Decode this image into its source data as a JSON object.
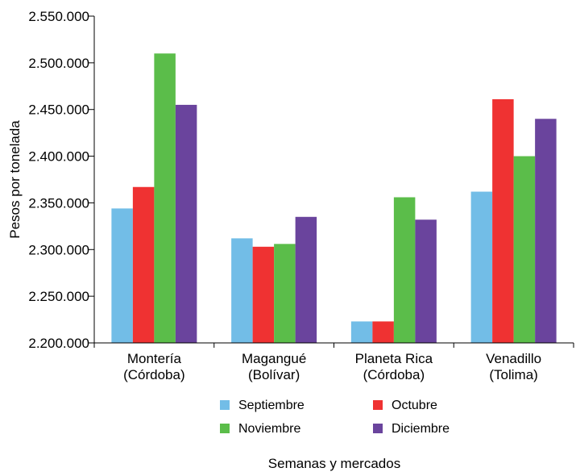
{
  "chart_data": {
    "type": "bar",
    "categories": [
      [
        "Montería",
        "(Córdoba)"
      ],
      [
        "Magangué",
        "(Bolívar)"
      ],
      [
        "Planeta Rica",
        "(Córdoba)"
      ],
      [
        "Venadillo",
        "(Tolima)"
      ]
    ],
    "series": [
      {
        "name": "Septiembre",
        "color": "#72BDE7",
        "values": [
          2344000,
          2312000,
          2223000,
          2362000
        ]
      },
      {
        "name": "Octubre",
        "color": "#EF3232",
        "values": [
          2367000,
          2303000,
          2223000,
          2461000
        ]
      },
      {
        "name": "Noviembre",
        "color": "#5BBD4A",
        "values": [
          2510000,
          2306000,
          2356000,
          2400000
        ]
      },
      {
        "name": "Diciembre",
        "color": "#6A449D",
        "values": [
          2455000,
          2335000,
          2332000,
          2440000
        ]
      }
    ],
    "title": "",
    "xlabel": "Semanas y mercados",
    "ylabel": "Pesos por tonelada",
    "ylim": [
      2200000,
      2550000
    ],
    "yticks": [
      2200000,
      2250000,
      2300000,
      2350000,
      2400000,
      2450000,
      2500000,
      2550000
    ],
    "ytick_labels": [
      "2.200.000",
      "2.250.000",
      "2.300.000",
      "2.350.000",
      "2.400.000",
      "2.450.000",
      "2.500.000",
      "2.550.000"
    ],
    "grid": false,
    "legend_position": "bottom"
  }
}
